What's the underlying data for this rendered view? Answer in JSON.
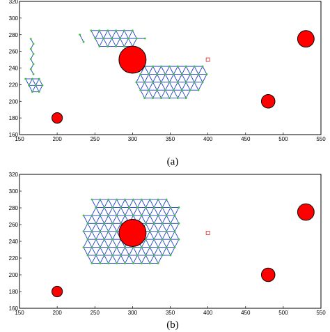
{
  "chart_data": [
    {
      "type": "scatter",
      "caption": "(a)",
      "xlim": [
        150,
        550
      ],
      "ylim": [
        160,
        320
      ],
      "x_ticks": [
        150,
        200,
        250,
        300,
        350,
        400,
        450,
        500,
        550
      ],
      "y_ticks": [
        160,
        180,
        200,
        220,
        240,
        260,
        280,
        300,
        320
      ],
      "grid": false,
      "colors": {
        "obstacle": "#ff0000",
        "edge": "#1f3fc8",
        "node": "#3ac23a",
        "target": "#e02020"
      },
      "obstacles": [
        {
          "x": 300,
          "y": 250,
          "r": 18
        },
        {
          "x": 200,
          "y": 180,
          "r": 7
        },
        {
          "x": 480,
          "y": 200,
          "r": 9
        },
        {
          "x": 530,
          "y": 275,
          "r": 11
        }
      ],
      "target": {
        "x": 400,
        "y": 250
      },
      "network_clusters": [
        {
          "cx": 245,
          "cy": 285,
          "cols": 7,
          "rows": 3,
          "spacing": 11,
          "holes": [
            [
              6,
              0
            ],
            [
              6,
              2
            ],
            [
              0,
              2
            ]
          ]
        },
        {
          "cx": 305,
          "cy": 242,
          "cols": 9,
          "rows": 5,
          "spacing": 11,
          "holes": [
            [
              8,
              4
            ],
            [
              8,
              3
            ],
            [
              7,
              4
            ],
            [
              0,
              0
            ],
            [
              0,
              4
            ]
          ]
        },
        {
          "cx": 165,
          "cy": 275,
          "cols": 1,
          "rows": 8,
          "spacing": 7,
          "holes": []
        },
        {
          "cx": 158,
          "cy": 227,
          "cols": 3,
          "rows": 3,
          "spacing": 9,
          "holes": [
            [
              0,
              2
            ]
          ]
        },
        {
          "cx": 230,
          "cy": 280,
          "cols": 1,
          "rows": 2,
          "spacing": 10,
          "holes": []
        }
      ],
      "clusters_note": ""
    },
    {
      "type": "scatter",
      "caption": "(b)",
      "xlim": [
        150,
        550
      ],
      "ylim": [
        160,
        320
      ],
      "x_ticks": [
        150,
        200,
        250,
        300,
        350,
        400,
        450,
        500,
        550
      ],
      "y_ticks": [
        160,
        180,
        200,
        220,
        240,
        260,
        280,
        300,
        320
      ],
      "grid": false,
      "colors": {
        "obstacle": "#ff0000",
        "edge": "#1f3fc8",
        "node": "#3ac23a",
        "target": "#e02020"
      },
      "obstacles": [
        {
          "x": 300,
          "y": 250,
          "r": 18
        },
        {
          "x": 200,
          "y": 180,
          "r": 7
        },
        {
          "x": 480,
          "y": 200,
          "r": 9
        },
        {
          "x": 530,
          "y": 275,
          "r": 11
        }
      ],
      "target": {
        "x": 400,
        "y": 250
      },
      "network_clusters": [
        {
          "cx": 235,
          "cy": 290,
          "cols": 12,
          "rows": 9,
          "spacing": 11,
          "holes": [
            [
              0,
              0
            ],
            [
              0,
              1
            ],
            [
              11,
              8
            ],
            [
              11,
              7
            ],
            [
              10,
              8
            ],
            [
              0,
              8
            ],
            [
              11,
              0
            ]
          ]
        }
      ]
    }
  ],
  "captions": {
    "a": "(a)",
    "b": "(b)"
  }
}
